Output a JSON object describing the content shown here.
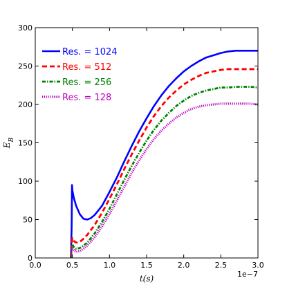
{
  "chart_data": {
    "type": "line",
    "title": "",
    "xlabel": "t(s)",
    "ylabel": "E_B",
    "x_offset_text": "1e−7",
    "xlim": [
      0.0,
      3.0
    ],
    "ylim": [
      0,
      300
    ],
    "x_ticks": [
      "0.0",
      "0.5",
      "1.0",
      "1.5",
      "2.0",
      "2.5",
      "3.0"
    ],
    "y_ticks": [
      "0",
      "50",
      "100",
      "150",
      "200",
      "250",
      "300"
    ],
    "grid": false,
    "legend_position": "upper-left",
    "series": [
      {
        "name": "Res. = 1024",
        "color": "#0000ff",
        "style": "solid",
        "x": [
          0.48,
          0.49,
          0.495,
          0.5,
          0.52,
          0.55,
          0.6,
          0.65,
          0.7,
          0.75,
          0.8,
          0.9,
          1.0,
          1.1,
          1.2,
          1.3,
          1.4,
          1.5,
          1.6,
          1.7,
          1.8,
          1.9,
          2.0,
          2.1,
          2.2,
          2.3,
          2.4,
          2.5,
          2.6,
          2.7,
          2.8,
          2.9,
          3.0
        ],
        "y": [
          0,
          40,
          95,
          88,
          78,
          68,
          57,
          51,
          50,
          52,
          56,
          68,
          86,
          105,
          126,
          146,
          165,
          182,
          198,
          212,
          224,
          234,
          243,
          250,
          256,
          261,
          264,
          267,
          269,
          270,
          270,
          270,
          270
        ]
      },
      {
        "name": "Res. = 512",
        "color": "#ff0000",
        "style": "dashed",
        "x": [
          0.48,
          0.49,
          0.5,
          0.52,
          0.55,
          0.6,
          0.65,
          0.7,
          0.8,
          0.9,
          1.0,
          1.1,
          1.2,
          1.3,
          1.4,
          1.5,
          1.6,
          1.7,
          1.8,
          1.9,
          2.0,
          2.1,
          2.2,
          2.3,
          2.4,
          2.5,
          2.6,
          2.7,
          2.8,
          2.9,
          3.0
        ],
        "y": [
          0,
          20,
          26,
          22,
          20,
          21,
          25,
          30,
          43,
          59,
          77,
          96,
          116,
          135,
          153,
          170,
          185,
          198,
          209,
          218,
          226,
          232,
          237,
          241,
          243,
          245,
          246,
          246,
          246,
          246,
          246
        ]
      },
      {
        "name": "Res. = 256",
        "color": "#008000",
        "style": "dashdot",
        "x": [
          0.48,
          0.49,
          0.5,
          0.52,
          0.55,
          0.6,
          0.65,
          0.7,
          0.8,
          0.9,
          1.0,
          1.1,
          1.2,
          1.3,
          1.4,
          1.5,
          1.6,
          1.7,
          1.8,
          1.9,
          2.0,
          2.1,
          2.2,
          2.3,
          2.4,
          2.5,
          2.6,
          2.7,
          2.8,
          2.9,
          3.0
        ],
        "y": [
          0,
          15,
          18,
          14,
          12,
          13,
          16,
          20,
          32,
          47,
          64,
          83,
          102,
          120,
          137,
          153,
          167,
          179,
          189,
          198,
          205,
          211,
          215,
          218,
          220,
          222,
          222,
          223,
          223,
          223,
          222
        ]
      },
      {
        "name": "Res. = 128",
        "color": "#bf00bf",
        "style": "dotted",
        "x": [
          0.48,
          0.49,
          0.5,
          0.52,
          0.55,
          0.6,
          0.65,
          0.7,
          0.8,
          0.9,
          1.0,
          1.1,
          1.2,
          1.3,
          1.4,
          1.5,
          1.6,
          1.7,
          1.8,
          1.9,
          2.0,
          2.1,
          2.2,
          2.3,
          2.4,
          2.5,
          2.6,
          2.7,
          2.8,
          2.9,
          3.0
        ],
        "y": [
          0,
          12,
          14,
          10,
          8,
          9,
          12,
          16,
          27,
          41,
          57,
          75,
          93,
          111,
          127,
          142,
          155,
          166,
          175,
          183,
          189,
          194,
          197,
          199,
          200,
          201,
          201,
          201,
          201,
          201,
          200
        ]
      }
    ]
  }
}
